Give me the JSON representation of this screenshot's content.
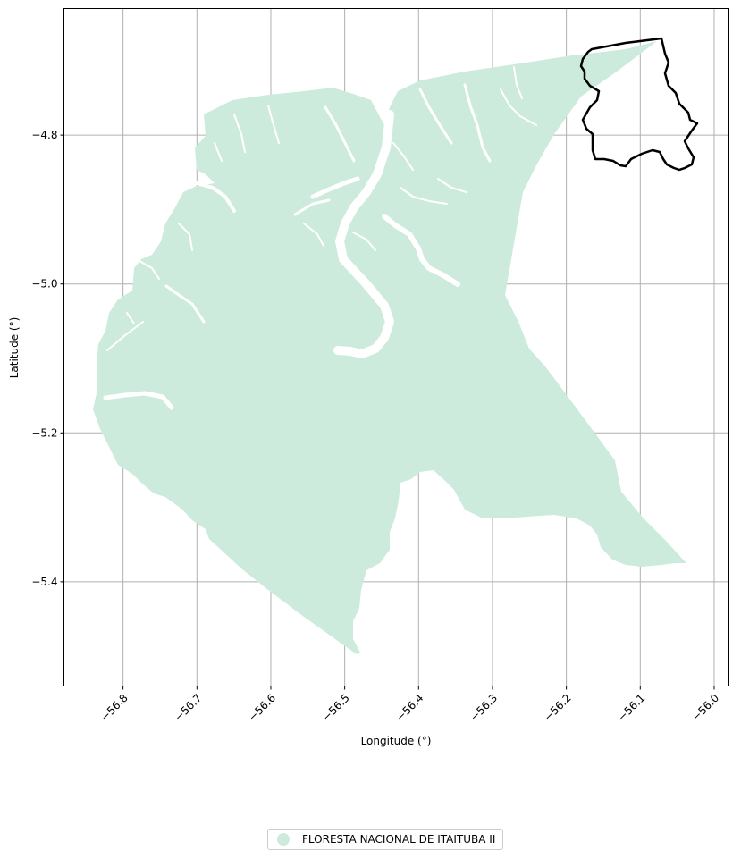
{
  "map": {
    "x_axis_label": "Longitude (°)",
    "y_axis_label": "Latitude (°)",
    "x_ticks": [
      "−56.8",
      "−56.7",
      "−56.6",
      "−56.5",
      "−56.4",
      "−56.3",
      "−56.2",
      "−56.1",
      "−56.0"
    ],
    "y_ticks": [
      "−4.8",
      "−5.0",
      "−5.2",
      "−5.4"
    ],
    "x_range": [
      -56.88,
      -55.98
    ],
    "y_range": [
      -5.54,
      -4.63
    ],
    "grid": true,
    "area_fill_color": "#cdebdc",
    "inset_outline_color": "#000000",
    "inset_position": "top-right"
  },
  "legend": {
    "position": "bottom-center",
    "label": "FLORESTA NACIONAL DE ITAITUBA II",
    "marker": "circle"
  }
}
